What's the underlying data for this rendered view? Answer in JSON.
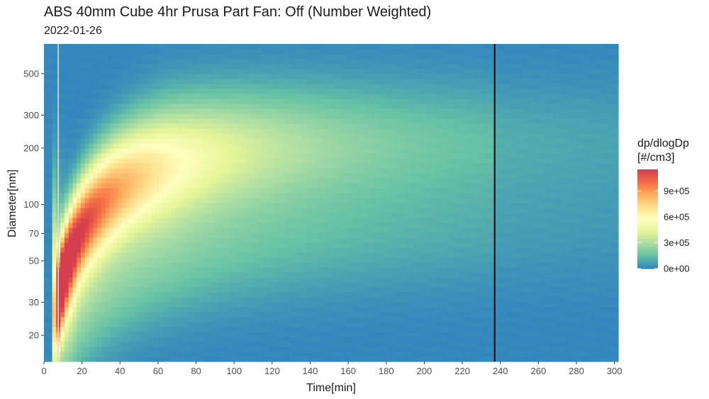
{
  "title": "ABS 40mm Cube 4hr Prusa Part Fan: Off (Number Weighted)",
  "subtitle": "2022-01-26",
  "chart_data": {
    "type": "heatmap",
    "xlabel": "Time[min]",
    "ylabel": "Diameter[nm]",
    "xlim": [
      0,
      302
    ],
    "ylim": [
      14.5,
      720
    ],
    "y_scale": "log",
    "x_ticks": [
      0,
      20,
      40,
      60,
      80,
      100,
      120,
      140,
      160,
      180,
      200,
      220,
      240,
      260,
      280,
      300
    ],
    "y_ticks": [
      20,
      30,
      50,
      70,
      100,
      200,
      300,
      500
    ],
    "legend": {
      "title_lines": [
        "dp/dlogDp",
        "[#/cm3]"
      ],
      "labels": [
        "9e+05",
        "6e+05",
        "3e+05",
        "0e+00"
      ],
      "values": [
        900000,
        600000,
        300000,
        0
      ],
      "max": 1150000,
      "placement": "right"
    },
    "colorscale": [
      "#3288bd",
      "#66c2a5",
      "#abdda4",
      "#e6f598",
      "#ffffbf",
      "#fee08b",
      "#fdae61",
      "#f46d43",
      "#d53e4f"
    ],
    "annotations": [
      {
        "type": "vline",
        "x": 7.5,
        "color": "#d9d9d9"
      },
      {
        "type": "vline",
        "x": 237,
        "color": "#000000"
      }
    ],
    "description_of_field": "Concentration rises sharply at ~8 min; peak ~1.1e+06 near 30-40 nm around 8-12 min; mode grows in diameter to ~120 nm by 60-80 min and ~200 nm by 200 min while decaying; secondary lower mode near 40-60 nm persists; field drops after the black line at 237 min.",
    "grid": false
  }
}
